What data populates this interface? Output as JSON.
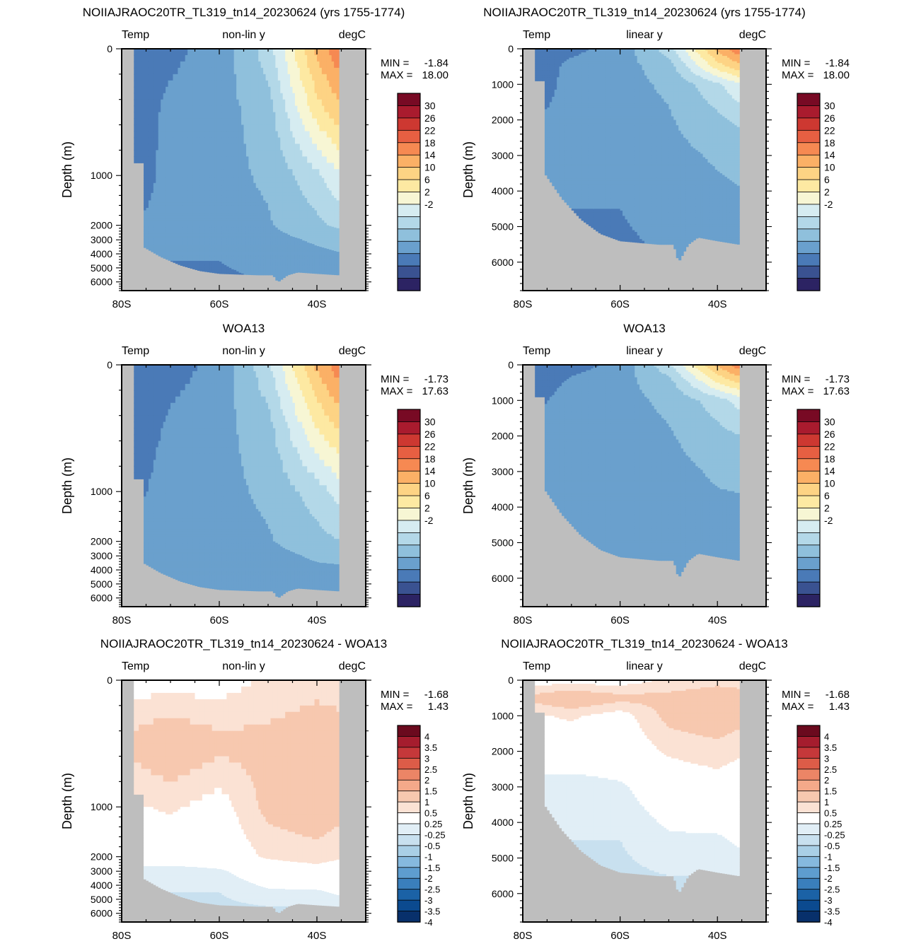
{
  "colors": {
    "land": "#bebebe",
    "temp_levels": [
      "#2c2363",
      "#3a5291",
      "#4a7ab7",
      "#6aa0cd",
      "#8fc0dc",
      "#b3d8e8",
      "#d6ecf1",
      "#f7f6d4",
      "#fde9a2",
      "#fdd384",
      "#fbb066",
      "#f68952",
      "#e75f42",
      "#cd3831",
      "#a91b2e",
      "#780a24"
    ],
    "diff_levels": [
      "#08306b",
      "#0b4a8f",
      "#1b62a6",
      "#3a7fbc",
      "#5e9dcf",
      "#86b9de",
      "#a9cfe6",
      "#c8e0ef",
      "#e1eef6",
      "#ffffff",
      "#fbe2d4",
      "#f7c8af",
      "#f4a98a",
      "#ec8566",
      "#dd5c48",
      "#c5383a",
      "#a51d2e",
      "#6b0a1e"
    ]
  },
  "chart_data": [
    {
      "type": "heatmap",
      "id": "model-nonlin",
      "title": "NOIIAJRAOC20TR_TL319_tn14_20230624 (yrs 1755-1774)",
      "left_label": "Temp",
      "center_label": "non-lin y",
      "right_label": "degC",
      "ylabel": "Depth (m)",
      "xticks": [
        "80S",
        "60S",
        "40S"
      ],
      "yticks": [
        "0",
        "1000",
        "2000",
        "3000",
        "4000",
        "5000",
        "6000"
      ],
      "stats": {
        "min_label": "MIN =",
        "min": "-1.84",
        "max_label": "MAX =",
        "max": "18.00"
      },
      "colorbar": [
        "30",
        "26",
        "22",
        "18",
        "14",
        "10",
        "6",
        "2",
        "-2"
      ],
      "xlim": [
        -80,
        -30
      ],
      "ylim": [
        6800,
        0
      ],
      "y_scale": "non-linear",
      "field": [
        {
          "lat": -78,
          "temps": [
            -1.5,
            -1.2,
            -1.0,
            0.0,
            0.0,
            0.0,
            0.0
          ]
        },
        {
          "lat": -70,
          "temps": [
            -0.5,
            0.5,
            0.6,
            0.5,
            0.5,
            0.0,
            0.0
          ]
        },
        {
          "lat": -60,
          "temps": [
            0.8,
            1.2,
            1.4,
            1.2,
            0.8,
            0.0,
            -0.3
          ]
        },
        {
          "lat": -50,
          "temps": [
            5.0,
            3.0,
            2.3,
            1.8,
            1.3,
            0.5,
            0.0
          ]
        },
        {
          "lat": -40,
          "temps": [
            14.5,
            11.0,
            5.5,
            3.5,
            2.3,
            1.2,
            0.3
          ]
        },
        {
          "lat": -35,
          "temps": [
            18.0,
            13.5,
            8.0,
            4.5,
            2.8,
            1.5,
            0.5
          ]
        }
      ]
    },
    {
      "type": "heatmap",
      "id": "model-lin",
      "title": "NOIIAJRAOC20TR_TL319_tn14_20230624 (yrs 1755-1774)",
      "left_label": "Temp",
      "center_label": "linear y",
      "right_label": "degC",
      "ylabel": "Depth (m)",
      "xticks": [
        "80S",
        "60S",
        "40S"
      ],
      "yticks": [
        "0",
        "1000",
        "2000",
        "3000",
        "4000",
        "5000",
        "6000"
      ],
      "stats": {
        "min_label": "MIN =",
        "min": "-1.84",
        "max_label": "MAX =",
        "max": "18.00"
      },
      "colorbar": [
        "30",
        "26",
        "22",
        "18",
        "14",
        "10",
        "6",
        "2",
        "-2"
      ],
      "xlim": [
        -80,
        -30
      ],
      "ylim": [
        6800,
        0
      ],
      "y_scale": "linear",
      "field": [
        {
          "lat": -78,
          "temps": [
            -1.5,
            -1.2,
            -1.0,
            0.0,
            0.0,
            0.0,
            0.0
          ]
        },
        {
          "lat": -70,
          "temps": [
            -0.5,
            0.5,
            0.6,
            0.5,
            0.5,
            0.0,
            0.0
          ]
        },
        {
          "lat": -60,
          "temps": [
            0.8,
            1.2,
            1.4,
            1.2,
            0.8,
            0.0,
            -0.3
          ]
        },
        {
          "lat": -50,
          "temps": [
            5.0,
            3.0,
            2.3,
            1.8,
            1.3,
            0.5,
            0.0
          ]
        },
        {
          "lat": -40,
          "temps": [
            14.5,
            11.0,
            5.5,
            3.5,
            2.3,
            1.2,
            0.3
          ]
        },
        {
          "lat": -35,
          "temps": [
            18.0,
            13.5,
            8.0,
            4.5,
            2.8,
            1.5,
            0.5
          ]
        }
      ]
    },
    {
      "type": "heatmap",
      "id": "obs-nonlin",
      "title": "WOA13",
      "left_label": "Temp",
      "center_label": "non-lin y",
      "right_label": "degC",
      "ylabel": "Depth (m)",
      "xticks": [
        "80S",
        "60S",
        "40S"
      ],
      "yticks": [
        "0",
        "1000",
        "2000",
        "3000",
        "4000",
        "5000",
        "6000"
      ],
      "stats": {
        "min_label": "MIN =",
        "min": "-1.73",
        "max_label": "MAX =",
        "max": "17.63"
      },
      "colorbar": [
        "30",
        "26",
        "22",
        "18",
        "14",
        "10",
        "6",
        "2",
        "-2"
      ],
      "xlim": [
        -80,
        -30
      ],
      "ylim": [
        6800,
        0
      ],
      "y_scale": "non-linear",
      "field": [
        {
          "lat": -78,
          "temps": [
            -1.6,
            -1.3,
            -0.5,
            0.5,
            0.5,
            0.5,
            0.0
          ]
        },
        {
          "lat": -70,
          "temps": [
            -0.8,
            0.4,
            0.8,
            0.9,
            0.8,
            0.6,
            0.3
          ]
        },
        {
          "lat": -60,
          "temps": [
            0.6,
            1.3,
            1.4,
            1.1,
            0.9,
            0.6,
            0.3
          ]
        },
        {
          "lat": -50,
          "temps": [
            5.5,
            3.2,
            2.4,
            1.8,
            1.3,
            0.8,
            0.4
          ]
        },
        {
          "lat": -40,
          "temps": [
            14.5,
            10.0,
            5.0,
            3.3,
            2.3,
            1.3,
            0.6
          ]
        },
        {
          "lat": -35,
          "temps": [
            17.6,
            12.5,
            7.0,
            4.0,
            2.5,
            1.3,
            0.7
          ]
        }
      ]
    },
    {
      "type": "heatmap",
      "id": "obs-lin",
      "title": "WOA13",
      "left_label": "Temp",
      "center_label": "linear y",
      "right_label": "degC",
      "ylabel": "Depth (m)",
      "xticks": [
        "80S",
        "60S",
        "40S"
      ],
      "yticks": [
        "0",
        "1000",
        "2000",
        "3000",
        "4000",
        "5000",
        "6000"
      ],
      "stats": {
        "min_label": "MIN =",
        "min": "-1.73",
        "max_label": "MAX =",
        "max": "17.63"
      },
      "colorbar": [
        "30",
        "26",
        "22",
        "18",
        "14",
        "10",
        "6",
        "2",
        "-2"
      ],
      "xlim": [
        -80,
        -30
      ],
      "ylim": [
        6800,
        0
      ],
      "y_scale": "linear",
      "field": [
        {
          "lat": -78,
          "temps": [
            -1.6,
            -1.3,
            -0.5,
            0.5,
            0.5,
            0.5,
            0.0
          ]
        },
        {
          "lat": -70,
          "temps": [
            -0.8,
            0.4,
            0.8,
            0.9,
            0.8,
            0.6,
            0.3
          ]
        },
        {
          "lat": -60,
          "temps": [
            0.6,
            1.3,
            1.4,
            1.1,
            0.9,
            0.6,
            0.3
          ]
        },
        {
          "lat": -50,
          "temps": [
            5.5,
            3.2,
            2.4,
            1.8,
            1.3,
            0.8,
            0.4
          ]
        },
        {
          "lat": -40,
          "temps": [
            14.5,
            10.0,
            5.0,
            3.3,
            2.3,
            1.3,
            0.6
          ]
        },
        {
          "lat": -35,
          "temps": [
            17.6,
            12.5,
            7.0,
            4.0,
            2.5,
            1.3,
            0.7
          ]
        }
      ]
    },
    {
      "type": "heatmap",
      "id": "diff-nonlin",
      "title": "NOIIAJRAOC20TR_TL319_tn14_20230624 - WOA13",
      "left_label": "Temp",
      "center_label": "non-lin y",
      "right_label": "degC",
      "ylabel": "Depth (m)",
      "xticks": [
        "80S",
        "60S",
        "40S"
      ],
      "yticks": [
        "0",
        "1000",
        "2000",
        "3000",
        "4000",
        "5000",
        "6000"
      ],
      "stats": {
        "min_label": "MIN =",
        "min": "-1.68",
        "max_label": "MAX =",
        "max": "1.43"
      },
      "colorbar": [
        "4",
        "3.5",
        "3",
        "2.5",
        "2",
        "1.5",
        "1",
        "0.5",
        "0.25",
        "-0.25",
        "-0.5",
        "-1",
        "-1.5",
        "-2",
        "-2.5",
        "-3",
        "-3.5",
        "-4"
      ],
      "xlim": [
        -80,
        -30
      ],
      "ylim": [
        6800,
        0
      ],
      "y_scale": "non-linear",
      "field": [
        {
          "lat": -78,
          "temps": [
            0.1,
            0.6,
            0.2,
            0.0,
            -0.4,
            -0.3,
            -0.3
          ]
        },
        {
          "lat": -70,
          "temps": [
            0.1,
            0.8,
            0.3,
            0.0,
            -0.4,
            -0.5,
            -0.5
          ]
        },
        {
          "lat": -60,
          "temps": [
            0.1,
            0.6,
            0.1,
            0.0,
            -0.3,
            -0.5,
            -0.6
          ]
        },
        {
          "lat": -50,
          "temps": [
            0.3,
            0.6,
            0.6,
            0.3,
            0.0,
            -0.3,
            -0.6
          ]
        },
        {
          "lat": -40,
          "temps": [
            0.4,
            0.7,
            0.7,
            0.4,
            0.1,
            -0.3,
            -0.6
          ]
        },
        {
          "lat": -35,
          "temps": [
            0.4,
            0.6,
            0.6,
            0.3,
            0.0,
            -0.2,
            -0.5
          ]
        }
      ]
    },
    {
      "type": "heatmap",
      "id": "diff-lin",
      "title": "NOIIAJRAOC20TR_TL319_tn14_20230624 - WOA13",
      "left_label": "Temp",
      "center_label": "linear y",
      "right_label": "degC",
      "ylabel": "Depth (m)",
      "xticks": [
        "80S",
        "60S",
        "40S"
      ],
      "yticks": [
        "0",
        "1000",
        "2000",
        "3000",
        "4000",
        "5000",
        "6000"
      ],
      "stats": {
        "min_label": "MIN =",
        "min": "-1.68",
        "max_label": "MAX =",
        "max": "1.43"
      },
      "colorbar": [
        "4",
        "3.5",
        "3",
        "2.5",
        "2",
        "1.5",
        "1",
        "0.5",
        "0.25",
        "-0.25",
        "-0.5",
        "-1",
        "-1.5",
        "-2",
        "-2.5",
        "-3",
        "-3.5",
        "-4"
      ],
      "xlim": [
        -80,
        -30
      ],
      "ylim": [
        6800,
        0
      ],
      "y_scale": "linear",
      "field": [
        {
          "lat": -78,
          "temps": [
            0.1,
            0.6,
            0.2,
            0.0,
            -0.4,
            -0.3,
            -0.3
          ]
        },
        {
          "lat": -70,
          "temps": [
            0.1,
            0.8,
            0.3,
            0.0,
            -0.4,
            -0.5,
            -0.5
          ]
        },
        {
          "lat": -60,
          "temps": [
            0.1,
            0.6,
            0.1,
            0.0,
            -0.3,
            -0.5,
            -0.6
          ]
        },
        {
          "lat": -50,
          "temps": [
            0.3,
            0.6,
            0.6,
            0.3,
            0.0,
            -0.3,
            -0.6
          ]
        },
        {
          "lat": -40,
          "temps": [
            0.4,
            0.7,
            0.7,
            0.4,
            0.1,
            -0.3,
            -0.6
          ]
        },
        {
          "lat": -35,
          "temps": [
            0.4,
            0.6,
            0.6,
            0.3,
            0.0,
            -0.2,
            -0.5
          ]
        }
      ]
    }
  ]
}
